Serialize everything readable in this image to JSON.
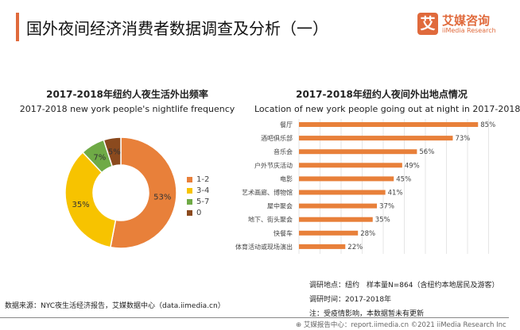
{
  "header": {
    "title": "国外夜间经济消费者数据调查及分析（一）",
    "logo_mark": "艾",
    "logo_cn": "艾媒咨询",
    "logo_en": "iiMedia Research",
    "accent": "#E06A3C"
  },
  "chart_data": [
    {
      "type": "pie",
      "donut": true,
      "title": "2017-2018年纽约人夜生活外出频率",
      "subtitle": "2017-2018 new york people's nightlife frequency",
      "categories": [
        "1-2",
        "3-4",
        "5-7",
        "0"
      ],
      "values": [
        53,
        35,
        7,
        5
      ],
      "labels": [
        "53%",
        "35%",
        "7%",
        "5%"
      ],
      "colors": [
        "#E8803A",
        "#F7C300",
        "#6FAA46",
        "#8B4A1E"
      ],
      "legend": "right"
    },
    {
      "type": "bar",
      "orientation": "horizontal",
      "title": "2017-2018年纽约人夜间外出地点情况",
      "subtitle": "Location of new york people going out at night in 2017-2018",
      "categories": [
        "餐厅",
        "酒吧俱乐部",
        "音乐会",
        "户外节庆活动",
        "电影",
        "艺术画廊、博物馆",
        "屋中聚会",
        "地下、街头聚会",
        "快餐车",
        "体育活动或现场演出"
      ],
      "values": [
        85,
        73,
        56,
        49,
        45,
        41,
        37,
        35,
        28,
        22
      ],
      "labels": [
        "85%",
        "73%",
        "56%",
        "49%",
        "45%",
        "41%",
        "37%",
        "35%",
        "28%",
        "22%"
      ],
      "color": "#E8803A",
      "grid": true,
      "unit": "%"
    }
  ],
  "footer": {
    "source": "数据来源：NYC夜生活经济报告，艾媒数据中心（data.iimedia.cn）",
    "notes": [
      "调研地点：纽约　样本量N=864（含纽约本地居民及游客）",
      "调研时间：2017-2018年",
      "注：受疫情影响，本数据暂未有更新"
    ],
    "copyright": "艾媒报告中心：report.iimedia.cn  ©2021  iiMedia Research Inc"
  }
}
